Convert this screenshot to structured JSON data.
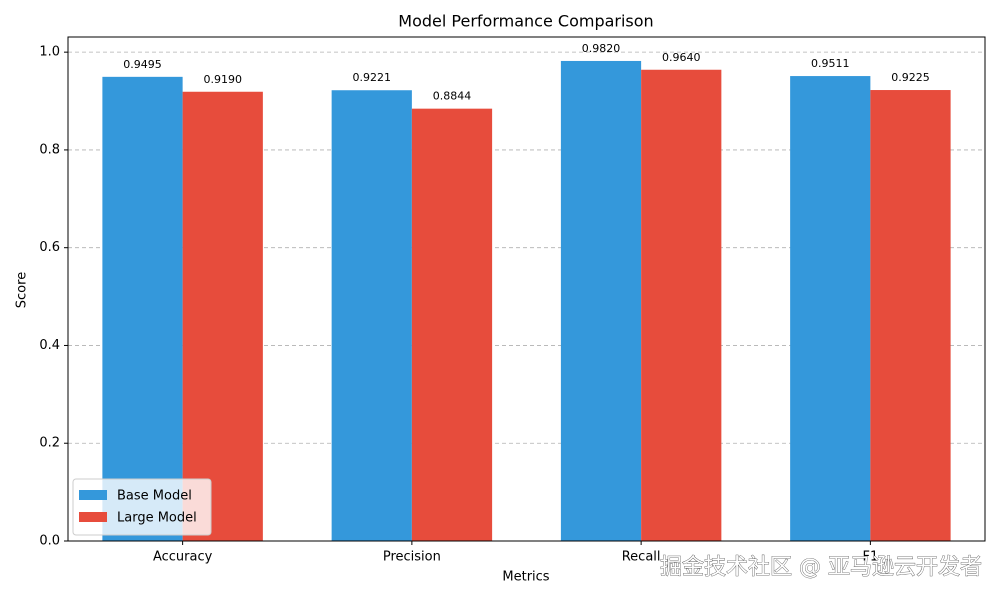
{
  "chart_data": {
    "type": "bar",
    "title": "Model Performance Comparison",
    "xlabel": "Metrics",
    "ylabel": "Score",
    "categories": [
      "Accuracy",
      "Precision",
      "Recall",
      "F1"
    ],
    "series": [
      {
        "name": "Base Model",
        "color": "#3498db",
        "values": [
          0.9495,
          0.9221,
          0.982,
          0.9511
        ],
        "value_labels": [
          "0.9495",
          "0.9221",
          "0.9820",
          "0.9511"
        ]
      },
      {
        "name": "Large Model",
        "color": "#e74c3c",
        "values": [
          0.919,
          0.8844,
          0.964,
          0.9225
        ],
        "value_labels": [
          "0.9190",
          "0.8844",
          "0.9640",
          "0.9225"
        ]
      }
    ],
    "ylim": [
      0,
      1.031
    ],
    "yticks": [
      {
        "value": 0,
        "label": "0.0"
      },
      0.2,
      0.4,
      0.6,
      0.8,
      {
        "value": 1,
        "label": "1.0"
      }
    ],
    "grid": true,
    "legend": "lower left",
    "watermark": "掘金技术社区 @ 亚马逊云开发者"
  }
}
